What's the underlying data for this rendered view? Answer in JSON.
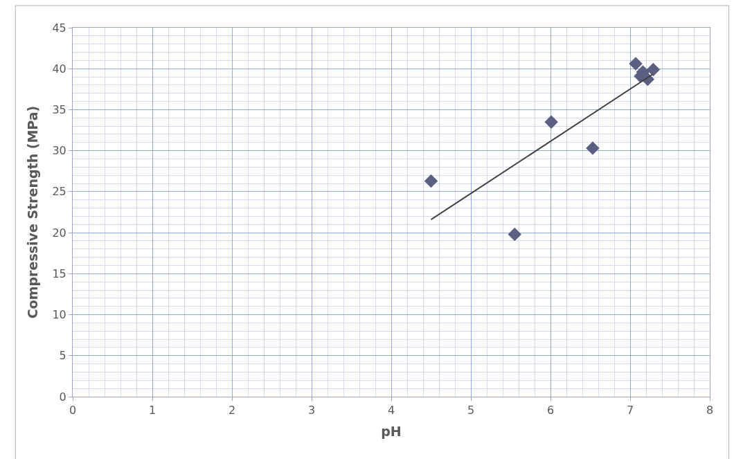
{
  "chart_data": {
    "type": "scatter",
    "xlabel": "pH",
    "ylabel": "Compressive Strength (MPa)",
    "xlim": [
      0,
      8
    ],
    "xticks": [
      0,
      1,
      2,
      3,
      4,
      5,
      6,
      7,
      8
    ],
    "ylim": [
      0,
      45
    ],
    "yticks": [
      0,
      5,
      10,
      15,
      20,
      25,
      30,
      35,
      40,
      45
    ],
    "grid": true,
    "marker": "diamond",
    "series": [
      {
        "color": "#5b5f82",
        "x": [
          4.5,
          5.55,
          6.01,
          6.53,
          7.07,
          7.13,
          7.16,
          7.22,
          7.29
        ],
        "values": [
          26.3,
          19.8,
          33.5,
          30.3,
          40.6,
          39.1,
          39.6,
          38.7,
          39.9
        ]
      },
      {
        "type": "line",
        "color": "#404040",
        "x": [
          4.5,
          7.28
        ],
        "values": [
          21.6,
          39.3
        ],
        "marker": "none",
        "line_style": "solid"
      }
    ]
  }
}
